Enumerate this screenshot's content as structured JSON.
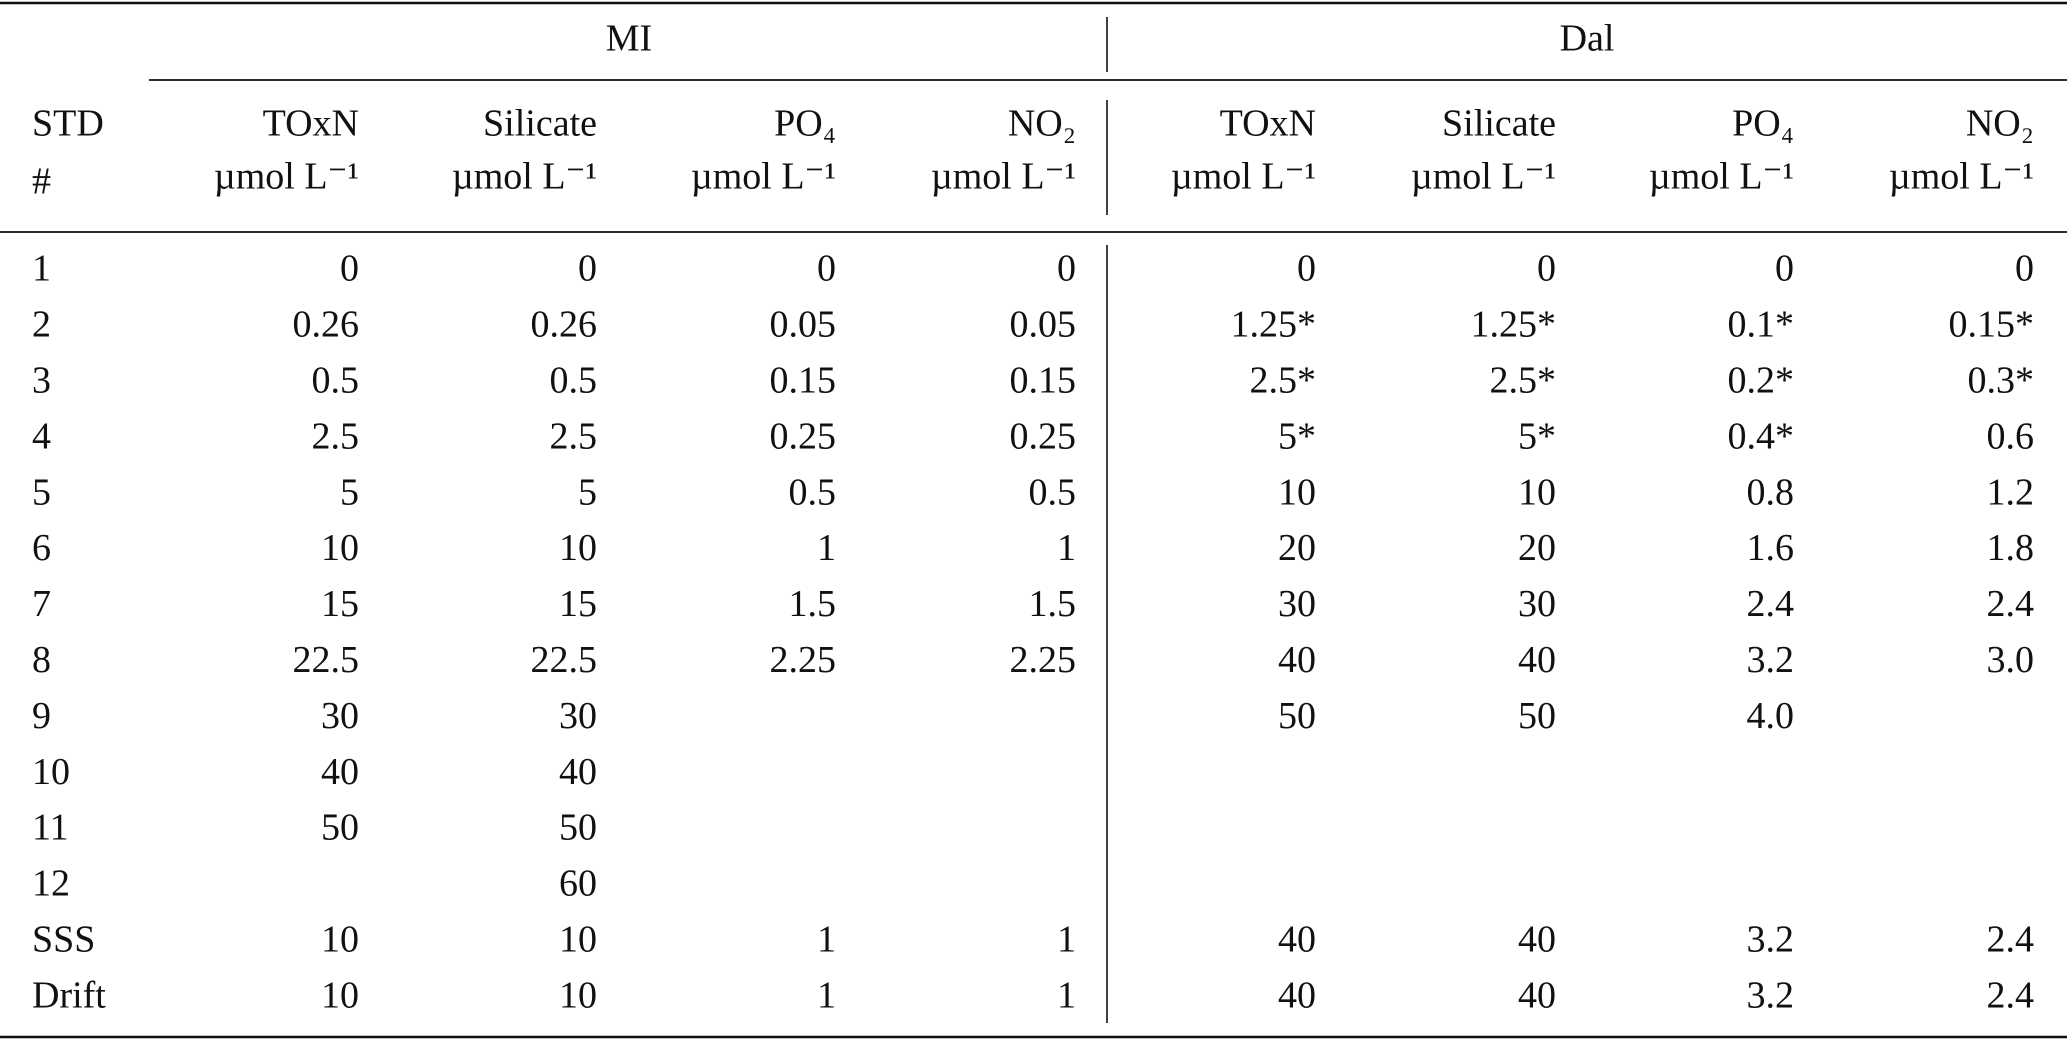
{
  "table": {
    "groups": [
      "MI",
      "Dal"
    ],
    "corner": [
      "STD",
      "#"
    ],
    "columns": [
      {
        "name": "TOxN",
        "unit": "µmol L⁻¹"
      },
      {
        "name": "Silicate",
        "unit": "µmol L⁻¹"
      },
      {
        "name": "PO₄",
        "unit": "µmol L⁻¹"
      },
      {
        "name": "NO₂",
        "unit": "µmol L⁻¹"
      },
      {
        "name": "TOxN",
        "unit": "µmol L⁻¹"
      },
      {
        "name": "Silicate",
        "unit": "µmol L⁻¹"
      },
      {
        "name": "PO₄",
        "unit": "µmol L⁻¹"
      },
      {
        "name": "NO₂",
        "unit": "µmol L⁻¹"
      }
    ],
    "rows": [
      [
        "1",
        "0",
        "0",
        "0",
        "0",
        "0",
        "0",
        "0",
        "0"
      ],
      [
        "2",
        "0.26",
        "0.26",
        "0.05",
        "0.05",
        "1.25*",
        "1.25*",
        "0.1*",
        "0.15*"
      ],
      [
        "3",
        "0.5",
        "0.5",
        "0.15",
        "0.15",
        "2.5*",
        "2.5*",
        "0.2*",
        "0.3*"
      ],
      [
        "4",
        "2.5",
        "2.5",
        "0.25",
        "0.25",
        "5*",
        "5*",
        "0.4*",
        "0.6"
      ],
      [
        "5",
        "5",
        "5",
        "0.5",
        "0.5",
        "10",
        "10",
        "0.8",
        "1.2"
      ],
      [
        "6",
        "10",
        "10",
        "1",
        "1",
        "20",
        "20",
        "1.6",
        "1.8"
      ],
      [
        "7",
        "15",
        "15",
        "1.5",
        "1.5",
        "30",
        "30",
        "2.4",
        "2.4"
      ],
      [
        "8",
        "22.5",
        "22.5",
        "2.25",
        "2.25",
        "40",
        "40",
        "3.2",
        "3.0"
      ],
      [
        "9",
        "30",
        "30",
        null,
        null,
        "50",
        "50",
        "4.0",
        null
      ],
      [
        "10",
        "40",
        "40",
        null,
        null,
        null,
        null,
        null,
        null
      ],
      [
        "11",
        "50",
        "50",
        null,
        null,
        null,
        null,
        null,
        null
      ],
      [
        "12",
        null,
        "60",
        null,
        null,
        null,
        null,
        null,
        null
      ],
      [
        "SSS",
        "10",
        "10",
        "1",
        "1",
        "40",
        "40",
        "3.2",
        "2.4"
      ],
      [
        "Drift",
        "10",
        "10",
        "1",
        "1",
        "40",
        "40",
        "3.2",
        "2.4"
      ]
    ]
  }
}
